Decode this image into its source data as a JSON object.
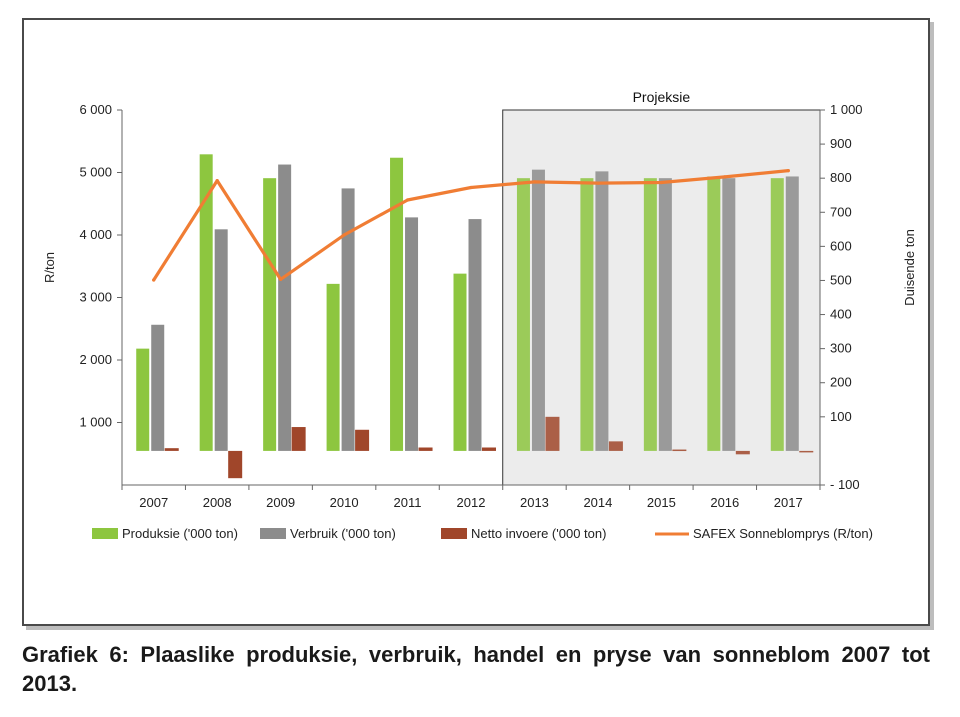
{
  "caption": "Grafiek 6: Plaaslike produksie, verbruik, handel en pryse van sonneblom 2007 tot 2013.",
  "chart_data": {
    "type": "bar",
    "categories": [
      "2007",
      "2008",
      "2009",
      "2010",
      "2011",
      "2012",
      "2013",
      "2014",
      "2015",
      "2016",
      "2017"
    ],
    "left_axis": {
      "label": "R/ton",
      "range": [
        0,
        6000
      ],
      "ticks": [
        1000,
        2000,
        3000,
        4000,
        5000,
        6000
      ],
      "tick_labels": [
        "1 000",
        "2 000",
        "3 000",
        "4 000",
        "5 000",
        "6 000"
      ]
    },
    "right_axis": {
      "label": "Duisende ton",
      "range": [
        -100,
        1000
      ],
      "ticks": [
        -100,
        100,
        200,
        300,
        400,
        500,
        600,
        700,
        800,
        900,
        1000
      ],
      "tick_labels": [
        "- 100",
        "100",
        "200",
        "300",
        "400",
        "500",
        "600",
        "700",
        "800",
        "900",
        "1 000"
      ]
    },
    "projection_label": "Projeksie",
    "projection_start": "2013",
    "series": [
      {
        "name": "Produksie ('000 ton)",
        "type": "bar",
        "axis": "right",
        "color": "#8dc63f",
        "values": [
          300,
          870,
          800,
          490,
          860,
          520,
          800,
          800,
          800,
          805,
          800
        ]
      },
      {
        "name": "Verbruik ('000 ton)",
        "type": "bar",
        "axis": "right",
        "color": "#8c8c8c",
        "values": [
          370,
          650,
          840,
          770,
          685,
          680,
          825,
          820,
          800,
          800,
          805
        ]
      },
      {
        "name": "Netto invoere ('000 ton)",
        "type": "bar",
        "axis": "right",
        "color": "#a0462a",
        "values": [
          8,
          -80,
          70,
          62,
          10,
          10,
          100,
          28,
          4,
          -10,
          -4
        ]
      },
      {
        "name": "SAFEX Sonneblomprys (R/ton)",
        "type": "line",
        "axis": "left",
        "color": "#f07d34",
        "values": [
          3280,
          4870,
          3290,
          4000,
          4560,
          4760,
          4850,
          4830,
          4840,
          4930,
          5030
        ]
      }
    ],
    "legend_position": "bottom",
    "grid": false
  }
}
